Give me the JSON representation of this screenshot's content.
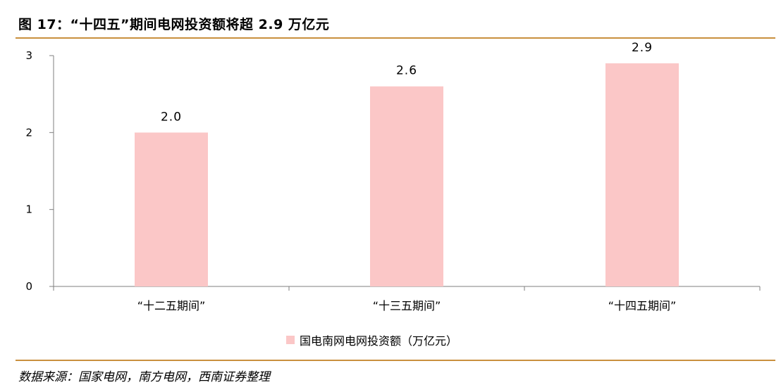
{
  "title": "图 17：“十四五”期间电网投资额将超 2.9 万亿元",
  "source": "数据来源：国家电网，南方电网，西南证券整理",
  "colors": {
    "bar": "#fbc7c7",
    "rule": "#c9903e",
    "axis": "#7f7f7f"
  },
  "chart_data": {
    "type": "bar",
    "title": "",
    "xlabel": "",
    "ylabel": "",
    "categories": [
      "“十二五期间”",
      "“十三五期间”",
      "“十四五期间”"
    ],
    "series": [
      {
        "name": "国电南网电网投资额（万亿元）",
        "values": [
          2.0,
          2.6,
          2.9
        ],
        "labels": [
          "2.0",
          "2.6",
          "2.9"
        ]
      }
    ],
    "ylim": [
      0,
      3
    ],
    "yticks": [
      0,
      1,
      2,
      3
    ],
    "grid": false,
    "legend": "bottom"
  }
}
